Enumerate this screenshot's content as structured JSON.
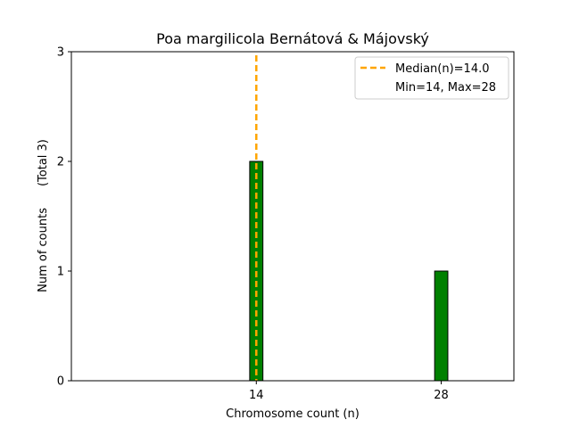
{
  "chart_data": {
    "type": "bar",
    "title": "Poa margilicola Bernátová & Májovský",
    "xlabel": "Chromosome count (n)",
    "ylabel": "Num of counts",
    "ylabel_total": "(Total 3)",
    "categories": [
      14,
      28
    ],
    "values": [
      2,
      1
    ],
    "xlim": [
      0,
      33.5
    ],
    "ylim": [
      0,
      3
    ],
    "yticks": [
      0,
      1,
      2,
      3
    ],
    "xticks": [
      14,
      28
    ],
    "bar_color": "#008000",
    "bar_edge_color": "#000000",
    "median": 14.0,
    "median_color": "#ffa500",
    "legend_position": "top-right",
    "legend": {
      "median_label": "Median(n)=14.0",
      "range_label": "Min=14, Max=28"
    },
    "grid": false
  }
}
